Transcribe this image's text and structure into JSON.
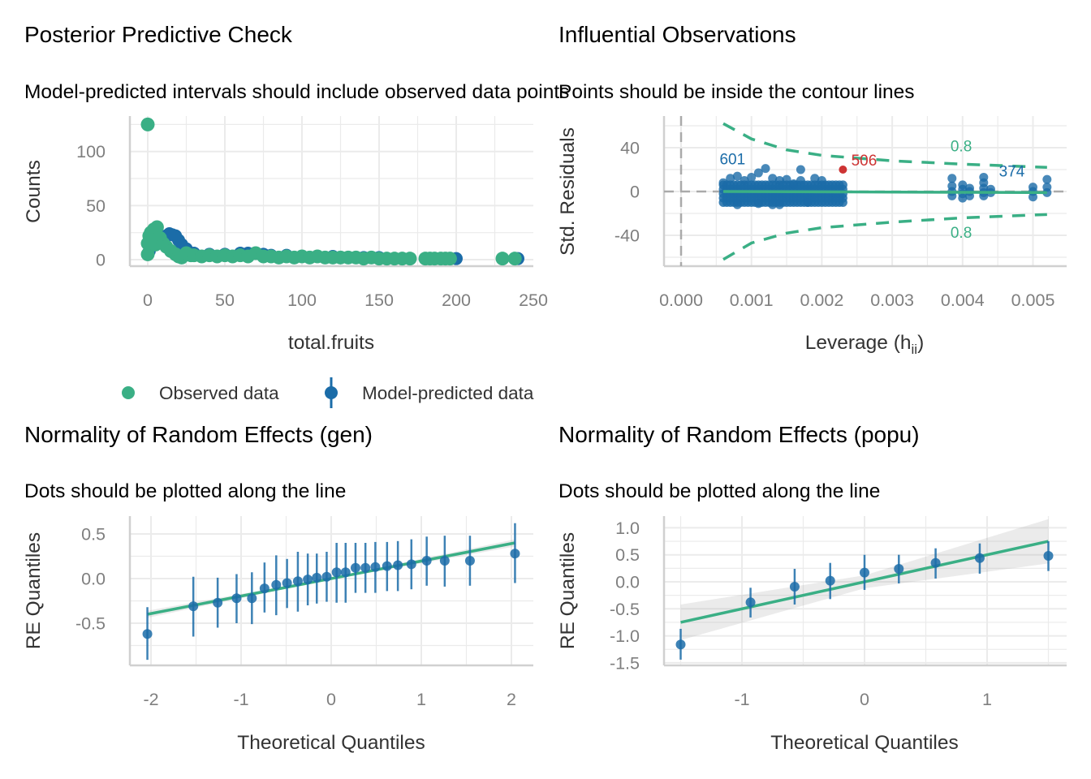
{
  "colors": {
    "green": "#3aaf85",
    "blue": "#1b6ca8",
    "red": "#cd3333",
    "grid": "#ebebeb",
    "axis": "#d0d0d0"
  },
  "legend": {
    "observed": "Observed data",
    "predicted": "Model-predicted data"
  },
  "chart_data": [
    {
      "type": "scatter",
      "title": "Posterior Predictive Check",
      "subtitle": "Model-predicted intervals should include observed data points",
      "xlabel": "total.fruits",
      "ylabel": "Counts",
      "xticks": [
        0,
        50,
        100,
        150,
        200,
        250
      ],
      "yticks": [
        0,
        50,
        100
      ],
      "xlim": [
        -12,
        250
      ],
      "ylim": [
        -6,
        133
      ],
      "series": [
        {
          "name": "Model-predicted data",
          "points": [
            [
              0,
              5
            ],
            [
              1,
              8
            ],
            [
              2,
              12
            ],
            [
              4,
              16
            ],
            [
              6,
              19
            ],
            [
              8,
              20
            ],
            [
              10,
              21
            ],
            [
              12,
              22
            ],
            [
              14,
              24
            ],
            [
              16,
              23
            ],
            [
              18,
              22
            ],
            [
              20,
              18
            ],
            [
              22,
              14
            ],
            [
              25,
              10
            ],
            [
              30,
              6
            ],
            [
              40,
              5
            ],
            [
              50,
              5
            ],
            [
              60,
              6
            ],
            [
              65,
              6
            ],
            [
              70,
              6
            ],
            [
              75,
              5
            ],
            [
              80,
              4
            ],
            [
              90,
              4
            ],
            [
              100,
              3
            ],
            [
              110,
              3
            ],
            [
              120,
              3
            ],
            [
              130,
              2
            ],
            [
              140,
              2
            ],
            [
              150,
              2
            ],
            [
              160,
              1
            ],
            [
              170,
              1
            ],
            [
              180,
              1
            ],
            [
              200,
              1
            ],
            [
              240,
              1
            ]
          ]
        },
        {
          "name": "Observed data",
          "points": [
            [
              0,
              125
            ],
            [
              0,
              5
            ],
            [
              0,
              15
            ],
            [
              1,
              22
            ],
            [
              2,
              25
            ],
            [
              4,
              28
            ],
            [
              6,
              30
            ],
            [
              3,
              18
            ],
            [
              5,
              14
            ],
            [
              8,
              20
            ],
            [
              10,
              15
            ],
            [
              12,
              12
            ],
            [
              15,
              8
            ],
            [
              18,
              5
            ],
            [
              20,
              3
            ],
            [
              22,
              2
            ],
            [
              25,
              6
            ],
            [
              28,
              4
            ],
            [
              30,
              4
            ],
            [
              35,
              3
            ],
            [
              40,
              4
            ],
            [
              45,
              3
            ],
            [
              50,
              4
            ],
            [
              55,
              3
            ],
            [
              60,
              4
            ],
            [
              65,
              3
            ],
            [
              70,
              6
            ],
            [
              75,
              3
            ],
            [
              80,
              3
            ],
            [
              85,
              2
            ],
            [
              90,
              3
            ],
            [
              95,
              2
            ],
            [
              100,
              3
            ],
            [
              105,
              2
            ],
            [
              110,
              3
            ],
            [
              115,
              2
            ],
            [
              120,
              2
            ],
            [
              125,
              2
            ],
            [
              130,
              2
            ],
            [
              135,
              2
            ],
            [
              140,
              1
            ],
            [
              145,
              2
            ],
            [
              150,
              1
            ],
            [
              155,
              1
            ],
            [
              160,
              1
            ],
            [
              165,
              1
            ],
            [
              170,
              1
            ],
            [
              180,
              1
            ],
            [
              183,
              1
            ],
            [
              186,
              1
            ],
            [
              190,
              1
            ],
            [
              193,
              1
            ],
            [
              196,
              1
            ],
            [
              230,
              1
            ],
            [
              238,
              1
            ]
          ]
        }
      ]
    },
    {
      "type": "scatter",
      "title": "Influential Observations",
      "subtitle": "Points should be inside the contour lines",
      "xlabel_main": "Leverage (h",
      "xlabel_sub": "ii",
      "xlabel_end": ")",
      "ylabel": "Std. Residuals",
      "xticks": [
        "0.000",
        "0.001",
        "0.002",
        "0.003",
        "0.004",
        "0.005"
      ],
      "yticks": [
        40,
        0,
        -40
      ],
      "xlim": [
        -0.00025,
        0.0055
      ],
      "ylim": [
        -68,
        68
      ],
      "cluster_grid": {
        "x_from": 0.0006,
        "x_to": 0.0023,
        "x_step": 0.0001,
        "y_values": [
          -10,
          -6,
          -2,
          2,
          6
        ]
      },
      "points": [
        [
          0.0006,
          8
        ],
        [
          0.0007,
          12
        ],
        [
          0.0008,
          14
        ],
        [
          0.0009,
          10
        ],
        [
          0.001,
          13
        ],
        [
          0.0011,
          17
        ],
        [
          0.0012,
          21
        ],
        [
          0.0013,
          12
        ],
        [
          0.0014,
          10
        ],
        [
          0.0014,
          -12
        ],
        [
          0.0015,
          11
        ],
        [
          0.0016,
          7
        ],
        [
          0.0017,
          10
        ],
        [
          0.0017,
          20
        ],
        [
          0.0019,
          12
        ],
        [
          0.002,
          10
        ],
        [
          0.0008,
          -12
        ],
        [
          0.0011,
          -11
        ],
        [
          0.0018,
          -10
        ],
        [
          0.0013,
          -12
        ],
        [
          0.00385,
          12
        ],
        [
          0.00385,
          5
        ],
        [
          0.00385,
          0
        ],
        [
          0.00385,
          -4
        ],
        [
          0.004,
          6
        ],
        [
          0.004,
          2
        ],
        [
          0.004,
          -2
        ],
        [
          0.004,
          -6
        ],
        [
          0.0041,
          3
        ],
        [
          0.0041,
          0
        ],
        [
          0.0041,
          -4
        ],
        [
          0.0043,
          13
        ],
        [
          0.0043,
          8
        ],
        [
          0.0043,
          3
        ],
        [
          0.0043,
          -1
        ],
        [
          0.0043,
          -4
        ],
        [
          0.0044,
          2
        ],
        [
          0.0044,
          -1
        ],
        [
          0.005,
          4
        ],
        [
          0.005,
          0
        ],
        [
          0.005,
          -5
        ],
        [
          0.0052,
          11
        ],
        [
          0.0052,
          4
        ],
        [
          0.0052,
          -1
        ]
      ],
      "influential_point": [
        0.0023,
        20
      ],
      "labels": [
        {
          "text": "601",
          "x": 0.00073,
          "y": 30,
          "color": "blue"
        },
        {
          "text": "506",
          "x": 0.0026,
          "y": 29,
          "color": "red"
        },
        {
          "text": "374",
          "x": 0.0047,
          "y": 19,
          "color": "blue"
        }
      ],
      "contour_upper": [
        [
          0.0006,
          62
        ],
        [
          0.001,
          48
        ],
        [
          0.0015,
          38
        ],
        [
          0.002,
          33
        ],
        [
          0.003,
          28
        ],
        [
          0.004,
          25
        ],
        [
          0.0052,
          22
        ]
      ],
      "contour_lower": [
        [
          0.0006,
          -62
        ],
        [
          0.001,
          -47
        ],
        [
          0.0015,
          -38
        ],
        [
          0.002,
          -33
        ],
        [
          0.003,
          -28
        ],
        [
          0.004,
          -24
        ],
        [
          0.0052,
          -21
        ]
      ],
      "contour_label": "0.8",
      "contour_label_positions": [
        [
          0.00398,
          42
        ],
        [
          0.00398,
          -37
        ]
      ],
      "fit_line": [
        [
          0.0006,
          0
        ],
        [
          0.0052,
          -1
        ]
      ]
    },
    {
      "type": "scatter",
      "title": "Normality of Random Effects (gen)",
      "subtitle": "Dots should be plotted along the line",
      "xlabel": "Theoretical Quantiles",
      "ylabel": "RE Quantiles",
      "xticks": [
        -2,
        -1,
        0,
        1,
        2
      ],
      "yticks": [
        0.5,
        0.0,
        -0.5
      ],
      "ytick_labels": [
        "0.5",
        "0.0",
        "-0.5"
      ],
      "points": [
        [
          -2.04,
          -0.62,
          -0.91,
          -0.32
        ],
        [
          -1.53,
          -0.31,
          -0.65,
          0.02
        ],
        [
          -1.26,
          -0.27,
          -0.55,
          0.01
        ],
        [
          -1.05,
          -0.22,
          -0.5,
          0.05
        ],
        [
          -0.88,
          -0.22,
          -0.51,
          0.07
        ],
        [
          -0.74,
          -0.11,
          -0.38,
          0.18
        ],
        [
          -0.61,
          -0.07,
          -0.41,
          0.26
        ],
        [
          -0.49,
          -0.05,
          -0.33,
          0.22
        ],
        [
          -0.37,
          -0.03,
          -0.37,
          0.3
        ],
        [
          -0.26,
          -0.01,
          -0.3,
          0.28
        ],
        [
          -0.16,
          0.01,
          -0.28,
          0.28
        ],
        [
          -0.05,
          0.02,
          -0.26,
          0.3
        ],
        [
          0.06,
          0.07,
          -0.27,
          0.4
        ],
        [
          0.16,
          0.07,
          -0.27,
          0.4
        ],
        [
          0.27,
          0.12,
          -0.16,
          0.4
        ],
        [
          0.38,
          0.12,
          -0.16,
          0.4
        ],
        [
          0.49,
          0.13,
          -0.16,
          0.41
        ],
        [
          0.62,
          0.14,
          -0.14,
          0.41
        ],
        [
          0.74,
          0.15,
          -0.14,
          0.42
        ],
        [
          0.89,
          0.16,
          -0.12,
          0.44
        ],
        [
          1.06,
          0.2,
          -0.08,
          0.47
        ],
        [
          1.26,
          0.2,
          -0.09,
          0.48
        ],
        [
          1.54,
          0.2,
          -0.08,
          0.48
        ],
        [
          2.04,
          0.28,
          -0.05,
          0.62
        ]
      ],
      "fit_line": [
        [
          -2.04,
          -0.4
        ],
        [
          2.04,
          0.4
        ]
      ],
      "band_halfwidth": [
        0.04,
        0.01,
        0.04
      ]
    },
    {
      "type": "scatter",
      "title": "Normality of Random Effects (popu)",
      "subtitle": "Dots should be plotted along the line",
      "xlabel": "Theoretical Quantiles",
      "ylabel": "RE Quantiles",
      "xticks": [
        -1,
        0,
        1
      ],
      "yticks": [
        1.0,
        0.5,
        0.0,
        -0.5,
        -1.0,
        -1.5
      ],
      "ytick_labels": [
        "1.0",
        "0.5",
        "0.0",
        "-0.5",
        "-1.0",
        "-1.5"
      ],
      "points": [
        [
          -1.5,
          -1.16,
          -1.44,
          -0.87
        ],
        [
          -0.93,
          -0.38,
          -0.66,
          -0.11
        ],
        [
          -0.57,
          -0.09,
          -0.42,
          0.24
        ],
        [
          -0.28,
          0.02,
          -0.32,
          0.35
        ],
        [
          0,
          0.17,
          -0.15,
          0.5
        ],
        [
          0.28,
          0.24,
          -0.03,
          0.5
        ],
        [
          0.58,
          0.35,
          0.06,
          0.62
        ],
        [
          0.94,
          0.44,
          0.15,
          0.71
        ],
        [
          1.5,
          0.48,
          0.2,
          0.75
        ]
      ],
      "fit_line": [
        [
          -1.5,
          -0.75
        ],
        [
          1.5,
          0.75
        ]
      ],
      "band_halfwidth": [
        0.33,
        0.12,
        0.41
      ]
    }
  ]
}
